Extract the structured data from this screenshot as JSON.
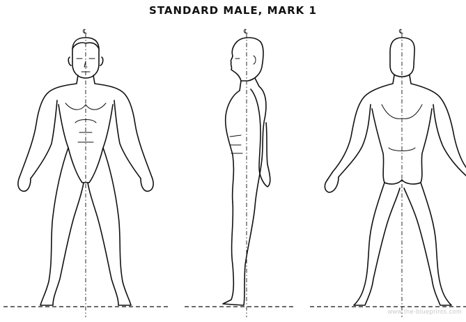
{
  "title": "STANDARD MALE, MARK 1",
  "centerline_symbol": "℄",
  "watermark": "www.the-blueprints.com",
  "views": [
    {
      "name": "front"
    },
    {
      "name": "side"
    },
    {
      "name": "back"
    }
  ]
}
